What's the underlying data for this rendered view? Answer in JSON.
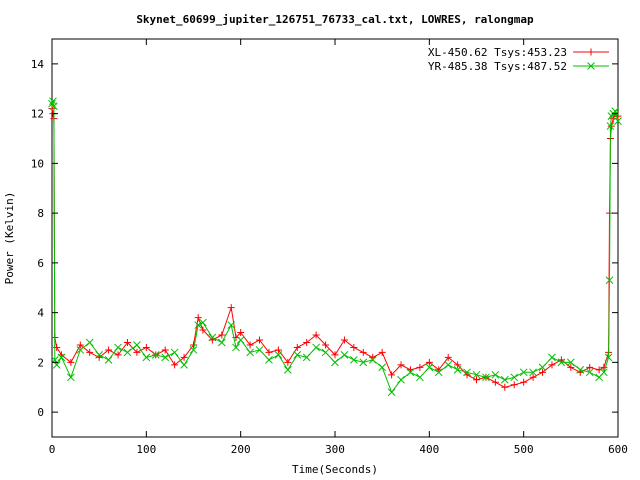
{
  "chart_data": {
    "type": "line",
    "title": "Skynet_60699_jupiter_126751_76733_cal.txt, LOWRES, ralongmap",
    "xlabel": "Time(Seconds)",
    "ylabel": "Power (Kelvin)",
    "xlim": [
      0,
      600
    ],
    "ylim": [
      -1,
      15
    ],
    "xticks": [
      0,
      100,
      200,
      300,
      400,
      500,
      600
    ],
    "yticks": [
      0,
      2,
      4,
      6,
      8,
      10,
      12,
      14
    ],
    "legend_position": "top-right",
    "grid": false,
    "series": [
      {
        "name": "XL-450.62 Tsys:453.23",
        "color": "#ff0000",
        "marker": "plus",
        "x": [
          0,
          1,
          2,
          3,
          5,
          10,
          20,
          30,
          40,
          50,
          60,
          70,
          80,
          90,
          100,
          110,
          120,
          130,
          140,
          150,
          155,
          160,
          170,
          180,
          190,
          195,
          200,
          210,
          220,
          230,
          240,
          250,
          260,
          270,
          280,
          290,
          300,
          310,
          320,
          330,
          340,
          350,
          360,
          370,
          380,
          390,
          400,
          410,
          420,
          430,
          440,
          450,
          460,
          470,
          480,
          490,
          500,
          510,
          520,
          530,
          540,
          550,
          560,
          570,
          580,
          585,
          590,
          591,
          592,
          593,
          595,
          597,
          600
        ],
        "y": [
          12.2,
          12.0,
          11.8,
          3.0,
          2.6,
          2.3,
          2.0,
          2.7,
          2.4,
          2.2,
          2.5,
          2.3,
          2.8,
          2.4,
          2.6,
          2.3,
          2.5,
          1.9,
          2.2,
          2.7,
          3.8,
          3.3,
          2.9,
          3.1,
          4.2,
          3.0,
          3.2,
          2.7,
          2.9,
          2.4,
          2.5,
          2.0,
          2.6,
          2.8,
          3.1,
          2.7,
          2.3,
          2.9,
          2.6,
          2.4,
          2.2,
          2.4,
          1.5,
          1.9,
          1.7,
          1.8,
          2.0,
          1.7,
          2.2,
          1.9,
          1.5,
          1.3,
          1.4,
          1.2,
          1.0,
          1.1,
          1.2,
          1.4,
          1.6,
          1.9,
          2.1,
          1.8,
          1.6,
          1.8,
          1.7,
          1.8,
          2.4,
          8.0,
          11.0,
          11.5,
          11.8,
          12.0,
          11.9
        ]
      },
      {
        "name": "YR-485.38 Tsys:487.52",
        "color": "#00c000",
        "marker": "x",
        "x": [
          0,
          1,
          2,
          3,
          5,
          10,
          20,
          30,
          40,
          50,
          60,
          70,
          80,
          90,
          100,
          110,
          120,
          130,
          140,
          150,
          155,
          160,
          170,
          180,
          190,
          195,
          200,
          210,
          220,
          230,
          240,
          250,
          260,
          270,
          280,
          290,
          300,
          310,
          320,
          330,
          340,
          350,
          360,
          370,
          380,
          390,
          400,
          410,
          420,
          430,
          440,
          450,
          460,
          470,
          480,
          490,
          500,
          510,
          520,
          530,
          540,
          550,
          560,
          570,
          580,
          585,
          590,
          591,
          592,
          593,
          595,
          597,
          600
        ],
        "y": [
          12.4,
          12.5,
          12.3,
          2.1,
          1.9,
          2.2,
          1.4,
          2.5,
          2.8,
          2.3,
          2.1,
          2.6,
          2.4,
          2.7,
          2.2,
          2.3,
          2.2,
          2.4,
          1.9,
          2.5,
          3.5,
          3.6,
          3.0,
          2.8,
          3.5,
          2.6,
          2.9,
          2.4,
          2.5,
          2.1,
          2.3,
          1.7,
          2.3,
          2.2,
          2.6,
          2.4,
          2.0,
          2.3,
          2.1,
          2.0,
          2.1,
          1.8,
          0.8,
          1.3,
          1.6,
          1.4,
          1.8,
          1.6,
          1.9,
          1.7,
          1.6,
          1.5,
          1.4,
          1.5,
          1.3,
          1.4,
          1.6,
          1.6,
          1.8,
          2.2,
          2.0,
          2.0,
          1.7,
          1.6,
          1.4,
          1.6,
          2.2,
          5.3,
          11.5,
          11.9,
          12.0,
          12.1,
          11.7
        ]
      }
    ]
  }
}
